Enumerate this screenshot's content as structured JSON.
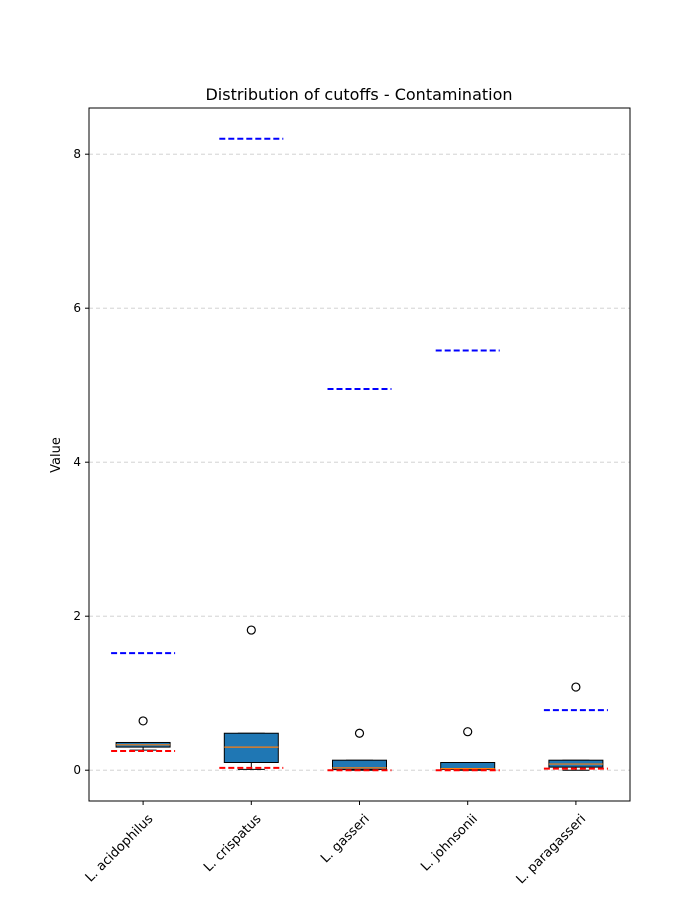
{
  "chart_data": {
    "type": "box",
    "title": "Distribution of cutoffs - Contamination",
    "xlabel": "",
    "ylabel": "Value",
    "ylim": [
      -0.4,
      8.6
    ],
    "yticks": [
      0,
      2,
      4,
      6,
      8
    ],
    "grid": "y-dashed",
    "categories": [
      "L. acidophilus",
      "L. crispatus",
      "L. gasseri",
      "L. johnsonii",
      "L. paragasseri"
    ],
    "boxes": [
      {
        "whisker_low": 0.26,
        "q1": 0.3,
        "median": 0.33,
        "q3": 0.36,
        "whisker_high": 0.36,
        "outliers": [
          0.64
        ]
      },
      {
        "whisker_low": 0.01,
        "q1": 0.1,
        "median": 0.3,
        "q3": 0.48,
        "whisker_high": 0.48,
        "outliers": [
          1.82
        ]
      },
      {
        "whisker_low": 0.0,
        "q1": 0.01,
        "median": 0.03,
        "q3": 0.13,
        "whisker_high": 0.13,
        "outliers": [
          0.48
        ]
      },
      {
        "whisker_low": 0.0,
        "q1": 0.01,
        "median": 0.02,
        "q3": 0.1,
        "whisker_high": 0.1,
        "outliers": [
          0.5
        ]
      },
      {
        "whisker_low": 0.0,
        "q1": 0.04,
        "median": 0.08,
        "q3": 0.13,
        "whisker_high": 0.13,
        "outliers": [
          1.08
        ]
      }
    ],
    "upper_cutoffs": [
      1.52,
      8.2,
      4.95,
      5.45,
      0.78
    ],
    "lower_cutoffs": [
      0.25,
      0.03,
      0.0,
      0.0,
      0.02
    ],
    "colors": {
      "box_fill": "#1f77b4",
      "median": "#ff7f0e",
      "upper_cutoff": "#0000ff",
      "lower_cutoff": "#ff0000",
      "grid": "#cccccc"
    }
  }
}
